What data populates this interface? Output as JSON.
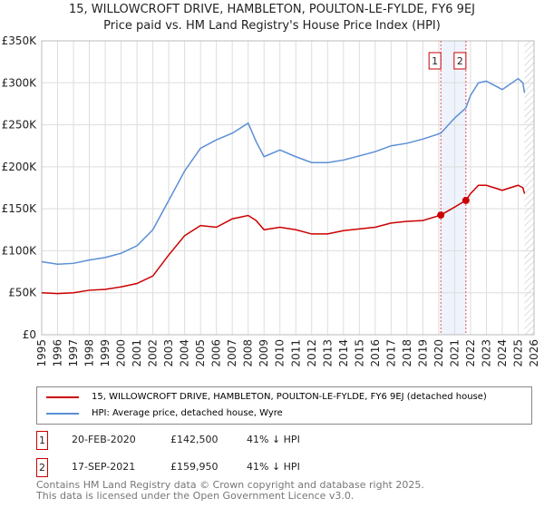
{
  "title": "15, WILLOWCROFT DRIVE, HAMBLETON, POULTON-LE-FYLDE, FY6 9EJ",
  "subtitle": "Price paid vs. HM Land Registry's House Price Index (HPI)",
  "chart_data": {
    "type": "line",
    "xlim": [
      1995,
      2026
    ],
    "ylim": [
      0,
      350000
    ],
    "x_ticks": [
      "1995",
      "1996",
      "1997",
      "1998",
      "1999",
      "2000",
      "2001",
      "2002",
      "2003",
      "2004",
      "2005",
      "2006",
      "2007",
      "2008",
      "2009",
      "2010",
      "2011",
      "2012",
      "2013",
      "2014",
      "2015",
      "2016",
      "2017",
      "2018",
      "2019",
      "2020",
      "2021",
      "2022",
      "2023",
      "2024",
      "2025",
      "2026"
    ],
    "y_ticks": [
      "£0",
      "£50K",
      "£100K",
      "£150K",
      "£200K",
      "£250K",
      "£300K",
      "£350K"
    ],
    "series": [
      {
        "name": "15, WILLOWCROFT DRIVE, HAMBLETON, POULTON-LE-FYLDE, FY6 9EJ (detached house)",
        "color": "#cc0000",
        "x": [
          1995,
          1996,
          1997,
          1998,
          1999,
          2000,
          2001,
          2002,
          2003,
          2004,
          2005,
          2006,
          2007,
          2008,
          2008.5,
          2009,
          2010,
          2011,
          2012,
          2013,
          2014,
          2015,
          2016,
          2017,
          2018,
          2019,
          2020.13,
          2021,
          2021.71,
          2022,
          2022.5,
          2023,
          2024,
          2025,
          2025.3,
          2025.4
        ],
        "y": [
          50000,
          49000,
          50000,
          53000,
          54000,
          57000,
          61000,
          70000,
          95000,
          118000,
          130000,
          128000,
          138000,
          142000,
          136000,
          125000,
          128000,
          125000,
          120000,
          120000,
          124000,
          126000,
          128000,
          133000,
          135000,
          136000,
          142500,
          152000,
          159950,
          168000,
          178000,
          178000,
          172000,
          178000,
          175000,
          168000
        ]
      },
      {
        "name": "HPI: Average price, detached house, Wyre",
        "color": "#5b8fd6",
        "x": [
          1995,
          1996,
          1997,
          1998,
          1999,
          2000,
          2001,
          2002,
          2003,
          2004,
          2005,
          2006,
          2007,
          2008,
          2008.5,
          2009,
          2010,
          2011,
          2012,
          2013,
          2014,
          2015,
          2016,
          2017,
          2018,
          2019,
          2020.13,
          2021,
          2021.71,
          2022,
          2022.5,
          2023,
          2024,
          2025,
          2025.3,
          2025.4
        ],
        "y": [
          87000,
          84000,
          85000,
          89000,
          92000,
          97000,
          106000,
          125000,
          160000,
          195000,
          222000,
          232000,
          240000,
          252000,
          230000,
          212000,
          220000,
          212000,
          205000,
          205000,
          208000,
          213000,
          218000,
          225000,
          228000,
          233000,
          240000,
          258000,
          270000,
          285000,
          300000,
          302000,
          292000,
          305000,
          300000,
          288000
        ]
      }
    ],
    "sales": [
      {
        "label": "1",
        "x": 2020.13,
        "price": 142500
      },
      {
        "label": "2",
        "x": 2021.71,
        "price": 159950
      }
    ],
    "hatch_from": 2025.4
  },
  "legend": {
    "property": "15, WILLOWCROFT DRIVE, HAMBLETON, POULTON-LE-FYLDE, FY6 9EJ (detached house)",
    "hpi": "HPI: Average price, detached house, Wyre"
  },
  "transactions": [
    {
      "num": "1",
      "date": "20-FEB-2020",
      "price": "£142,500",
      "hpi": "41% ↓ HPI"
    },
    {
      "num": "2",
      "date": "17-SEP-2021",
      "price": "£159,950",
      "hpi": "41% ↓ HPI"
    }
  ],
  "footer": {
    "line1": "Contains HM Land Registry data © Crown copyright and database right 2025.",
    "line2": "This data is licensed under the Open Government Licence v3.0."
  }
}
